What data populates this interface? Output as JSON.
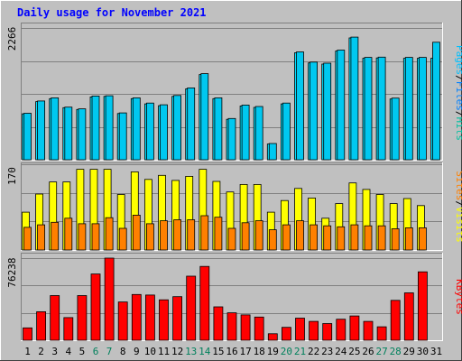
{
  "chart_data": [
    {
      "type": "bar",
      "title": "Daily usage for November 2021",
      "ylabel_parts": [
        "Pages",
        "Files",
        "Hits"
      ],
      "ymax_label": "2266",
      "ylim": [
        0,
        2266
      ],
      "categories": [
        "1",
        "2",
        "3",
        "4",
        "5",
        "6",
        "7",
        "8",
        "9",
        "10",
        "11",
        "12",
        "13",
        "14",
        "15",
        "16",
        "17",
        "18",
        "19",
        "20",
        "21",
        "22",
        "23",
        "24",
        "25",
        "26",
        "27",
        "28",
        "29",
        "30",
        "31"
      ],
      "series": [
        {
          "name": "Files",
          "color": "#0080ff",
          "values": [
            790,
            1000,
            1050,
            895,
            865,
            1080,
            1090,
            795,
            1050,
            960,
            930,
            1090,
            1220,
            1465,
            1050,
            695,
            925,
            900,
            270,
            960,
            1840,
            1665,
            1645,
            1870,
            2095,
            1745,
            1750,
            1045,
            1745,
            1745,
            1745
          ]
        },
        {
          "name": "Hits",
          "color": "#00e0ff",
          "values": [
            800,
            1010,
            1065,
            905,
            875,
            1095,
            1100,
            805,
            1065,
            975,
            945,
            1105,
            1235,
            1480,
            1065,
            710,
            940,
            915,
            280,
            975,
            1855,
            1680,
            1660,
            1885,
            2110,
            1760,
            1765,
            1060,
            1760,
            1760,
            2020
          ]
        }
      ]
    },
    {
      "type": "bar",
      "ylabel_parts": [
        "Sites",
        "Visits"
      ],
      "ymax_label": "170",
      "ylim": [
        0,
        170
      ],
      "categories": [
        "1",
        "2",
        "3",
        "4",
        "5",
        "6",
        "7",
        "8",
        "9",
        "10",
        "11",
        "12",
        "13",
        "14",
        "15",
        "16",
        "17",
        "18",
        "19",
        "20",
        "21",
        "22",
        "23",
        "24",
        "25",
        "26",
        "27",
        "28",
        "29",
        "30",
        "31"
      ],
      "series": [
        {
          "name": "Visits",
          "color": "#ffff00",
          "values": [
            75,
            111,
            135,
            135,
            160,
            160,
            160,
            110,
            155,
            140,
            148,
            138,
            146,
            160,
            136,
            115,
            130,
            130,
            75,
            98,
            122,
            103,
            63,
            92,
            133,
            120,
            110,
            92,
            102,
            88,
            0
          ]
        },
        {
          "name": "Sites",
          "color": "#ff8000",
          "values": [
            45,
            50,
            55,
            63,
            52,
            52,
            64,
            43,
            69,
            52,
            58,
            60,
            60,
            68,
            65,
            43,
            54,
            58,
            40,
            50,
            58,
            50,
            48,
            46,
            50,
            48,
            48,
            42,
            44,
            44,
            0
          ]
        }
      ]
    },
    {
      "type": "bar",
      "ylabel_parts": [
        "KBytes"
      ],
      "ymax_label": "76238",
      "ylim": [
        0,
        76238
      ],
      "categories": [
        "1",
        "2",
        "3",
        "4",
        "5",
        "6",
        "7",
        "8",
        "9",
        "10",
        "11",
        "12",
        "13",
        "14",
        "15",
        "16",
        "17",
        "18",
        "19",
        "20",
        "21",
        "22",
        "23",
        "24",
        "25",
        "26",
        "27",
        "28",
        "29",
        "30",
        "31"
      ],
      "series": [
        {
          "name": "KBytes",
          "color": "#ff0000",
          "values": [
            11500,
            26500,
            41500,
            21000,
            41500,
            61500,
            76238,
            35500,
            42500,
            42000,
            37500,
            40500,
            59500,
            68500,
            31000,
            25500,
            23500,
            21500,
            6000,
            12000,
            20500,
            17500,
            15500,
            19500,
            22500,
            17500,
            12500,
            37000,
            44000,
            63500,
            0
          ]
        }
      ]
    }
  ],
  "x_label_colors": {
    "weekday": "#000000",
    "weekend": "#00805c"
  },
  "weekend_days": [
    "6",
    "7",
    "13",
    "14",
    "20",
    "21",
    "27",
    "28"
  ],
  "colors": {
    "background": "#c0c0c0",
    "title": "#0000ff",
    "pages": "#00c0ff",
    "files": "#0080ff",
    "hits": "#00c0a0",
    "visits": "#ffff00",
    "sites": "#ff8000",
    "kbytes": "#ff0000"
  }
}
